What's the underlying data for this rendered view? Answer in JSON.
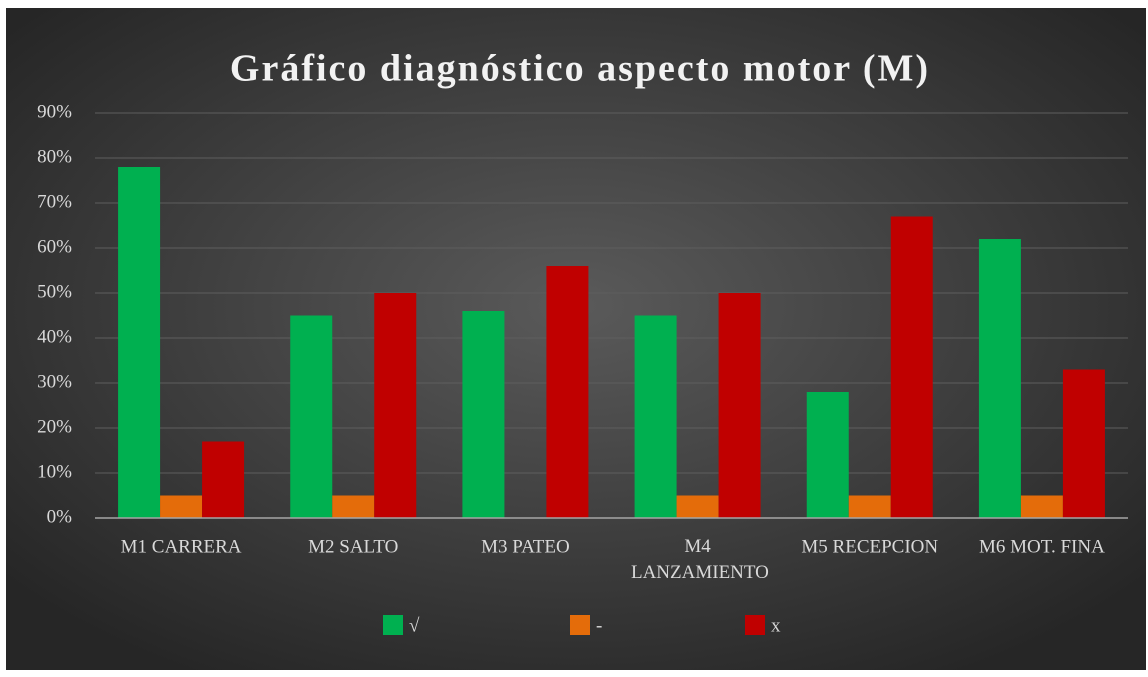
{
  "chart_data": {
    "type": "bar",
    "title": "Gráfico diagnóstico aspecto motor (M)",
    "categories": [
      "M1 CARRERA",
      "M2 SALTO",
      "M3 PATEO",
      "M4 LANZAMIENTO",
      "M5 RECEPCION",
      "M6 MOT. FINA"
    ],
    "series": [
      {
        "name": "√",
        "color": "#00b050",
        "values": [
          78,
          45,
          46,
          45,
          28,
          62
        ]
      },
      {
        "name": "-",
        "color": "#e46c0a",
        "values": [
          5,
          5,
          0,
          5,
          5,
          5
        ]
      },
      {
        "name": "x",
        "color": "#c00000",
        "values": [
          17,
          50,
          56,
          50,
          67,
          33
        ]
      }
    ],
    "ylim": [
      0,
      90
    ],
    "yticks": [
      {
        "value": 0,
        "label": "0%"
      },
      {
        "value": 10,
        "label": "10%"
      },
      {
        "value": 20,
        "label": "20%"
      },
      {
        "value": 30,
        "label": "30%"
      },
      {
        "value": 40,
        "label": "40%"
      },
      {
        "value": 50,
        "label": "50%"
      },
      {
        "value": 60,
        "label": "60%"
      },
      {
        "value": 70,
        "label": "70%"
      },
      {
        "value": 80,
        "label": "80%"
      },
      {
        "value": 90,
        "label": "90%"
      }
    ],
    "grid": true,
    "legend": "bottom"
  }
}
